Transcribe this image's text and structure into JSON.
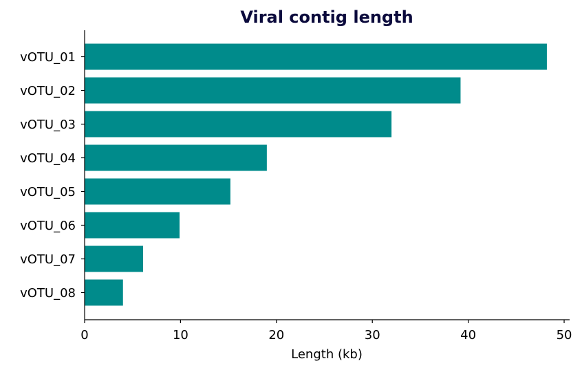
{
  "chart_data": {
    "type": "bar",
    "orientation": "horizontal",
    "title": "Viral contig length",
    "xlabel": "Length (kb)",
    "ylabel": "",
    "categories": [
      "vOTU_01",
      "vOTU_02",
      "vOTU_03",
      "vOTU_04",
      "vOTU_05",
      "vOTU_06",
      "vOTU_07",
      "vOTU_08"
    ],
    "values": [
      48.2,
      39.2,
      32.0,
      19.0,
      15.2,
      9.9,
      6.1,
      4.0
    ],
    "xlim": [
      0,
      50.5
    ],
    "xticks": [
      0,
      10,
      20,
      30,
      40,
      50
    ],
    "grid": false,
    "legend": false,
    "colors": {
      "bar": "#008b8b",
      "title": "#0b0a3c",
      "axis": "#000000"
    }
  }
}
